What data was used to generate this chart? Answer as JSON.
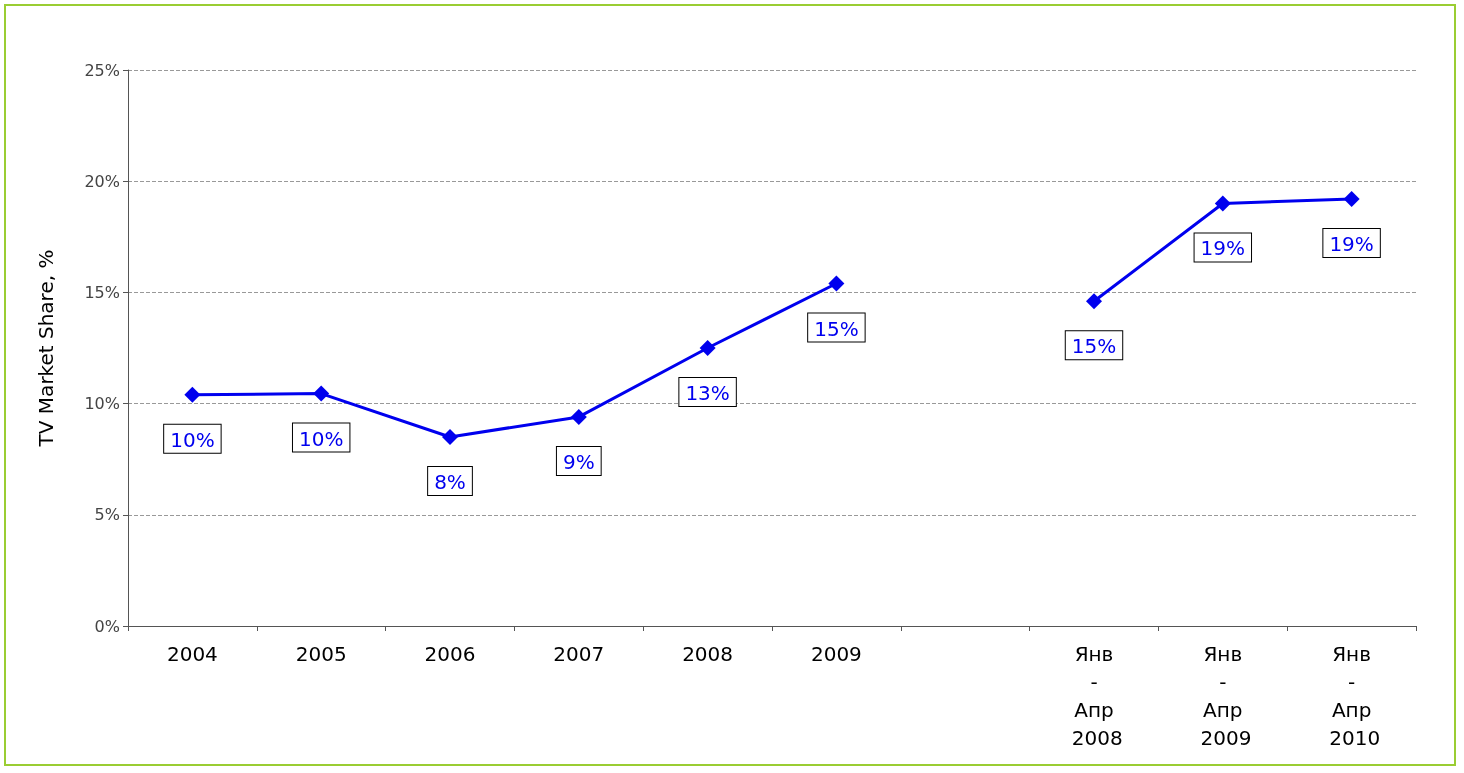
{
  "chart_data": {
    "type": "line",
    "ylabel": "TV Market Share, %",
    "categories": [
      "2004",
      "2005",
      "2006",
      "2007",
      "2008",
      "2009",
      null,
      "Янв - Апр 2008",
      "Янв - Апр 2009",
      "Янв - Апр 2010"
    ],
    "series": [
      {
        "color": "#0000ee",
        "values": [
          10.4,
          10.45,
          8.5,
          9.4,
          12.5,
          15.4,
          null,
          14.6,
          19.0,
          19.2
        ],
        "value_labels": [
          "10%",
          "10%",
          "8%",
          "9%",
          "13%",
          "15%",
          null,
          "15%",
          "19%",
          "19%"
        ]
      }
    ],
    "ylim": [
      0,
      25
    ],
    "yticks": [
      {
        "value": 0,
        "label": "0%"
      },
      {
        "value": 5,
        "label": "5%"
      },
      {
        "value": 10,
        "label": "10%"
      },
      {
        "value": 15,
        "label": "15%"
      },
      {
        "value": 20,
        "label": "20%"
      },
      {
        "value": 25,
        "label": "25%"
      }
    ],
    "grid": "y",
    "marker": "diamond",
    "line_style": "solid"
  }
}
